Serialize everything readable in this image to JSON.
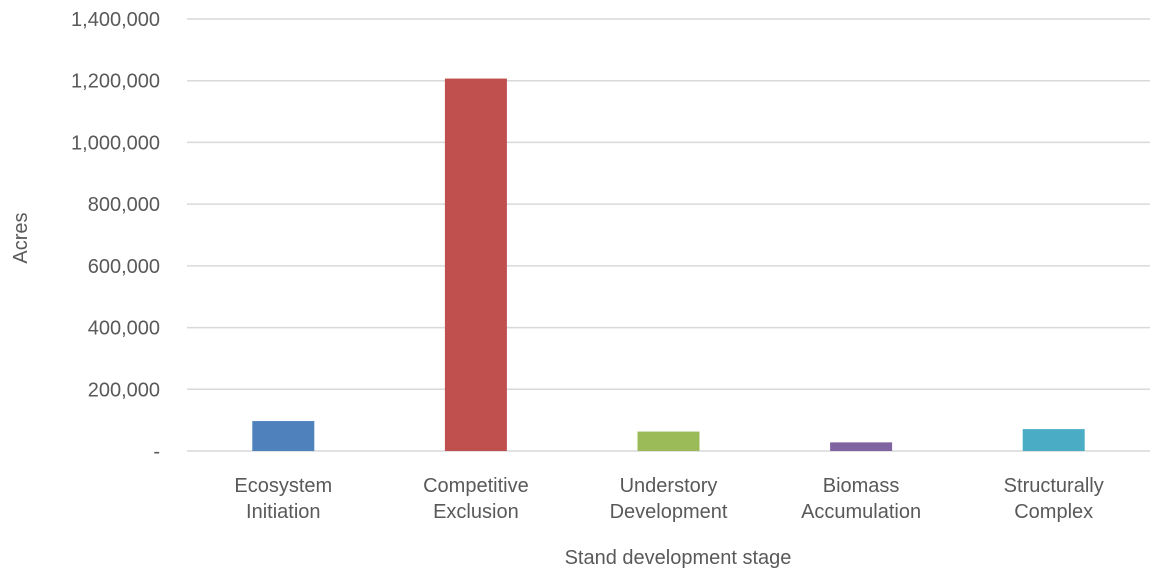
{
  "chart_data": {
    "type": "bar",
    "title": "",
    "xlabel": "Stand development stage",
    "ylabel": "Acres",
    "ylim": [
      0,
      1400000
    ],
    "yticks": [
      0,
      200000,
      400000,
      600000,
      800000,
      1000000,
      1200000,
      1400000
    ],
    "ytick_labels": [
      "-",
      "200,000",
      "400,000",
      "600,000",
      "800,000",
      "1,000,000",
      "1,200,000",
      "1,400,000"
    ],
    "grid": true,
    "legend": "none",
    "categories": [
      [
        "Ecosystem",
        "Initiation"
      ],
      [
        "Competitive",
        "Exclusion"
      ],
      [
        "Understory",
        "Development"
      ],
      [
        "Biomass",
        "Accumulation"
      ],
      [
        "Structurally",
        "Complex"
      ]
    ],
    "values": [
      97000,
      1207000,
      63000,
      28000,
      71000
    ],
    "colors": [
      "#4f81bd",
      "#c0504d",
      "#9bbb59",
      "#8064a2",
      "#4bacc6"
    ]
  }
}
